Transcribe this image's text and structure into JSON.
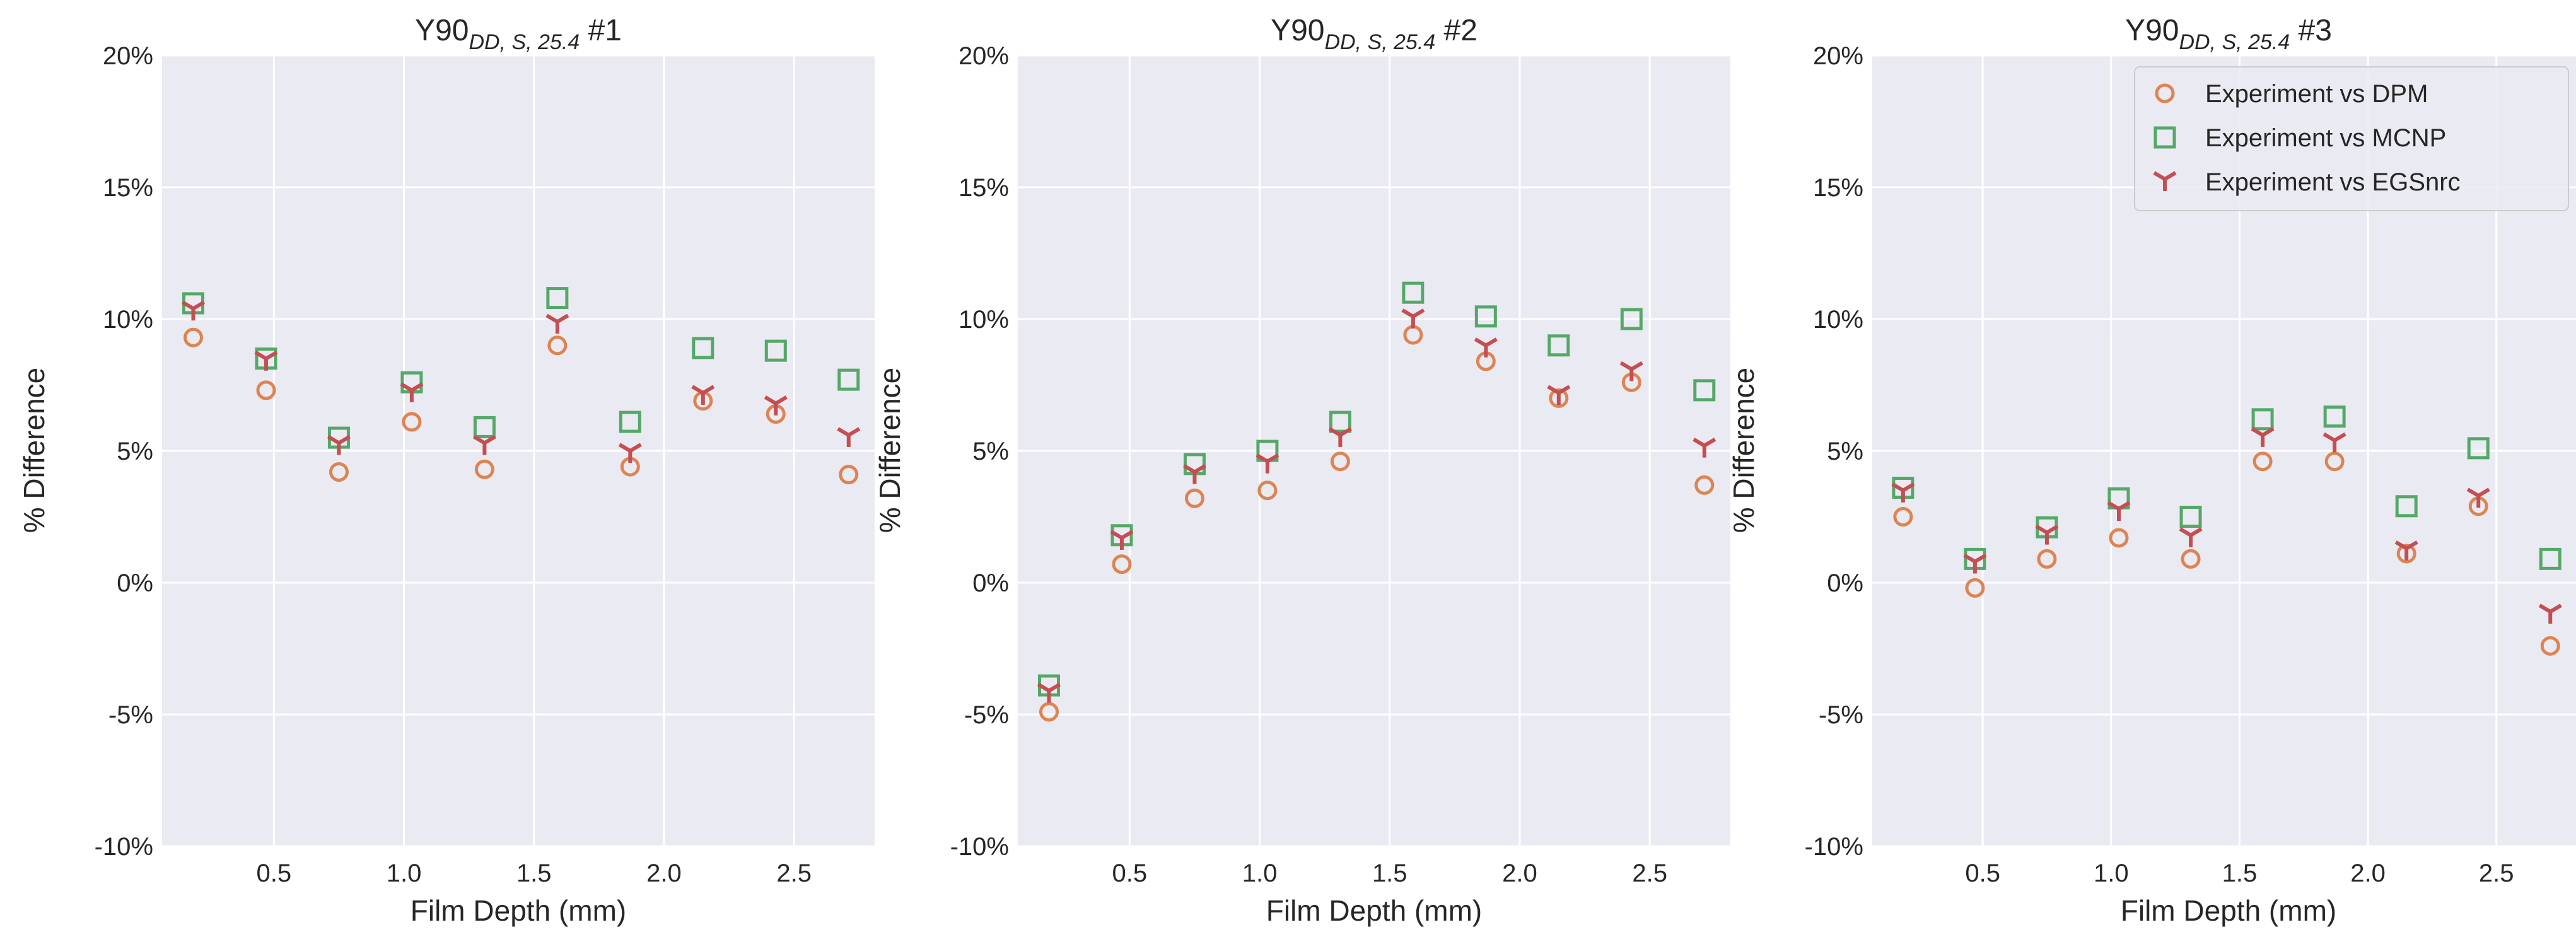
{
  "colors": {
    "background": "#EAEAF2",
    "grid": "#FFFFFF",
    "dpm": "#DD8452",
    "mcnp": "#55A868",
    "egsnrc": "#C44E52"
  },
  "chart_data": [
    {
      "type": "scatter",
      "title": {
        "main": "Y90",
        "subscript": "DD, S, 25.4",
        "suffix": " #1"
      },
      "xlabel": "Film Depth (mm)",
      "ylabel": "% Difference",
      "xlim": [
        0.07,
        2.81
      ],
      "ylim": [
        -10,
        20
      ],
      "xticks": [
        0.5,
        1.0,
        1.5,
        2.0,
        2.5
      ],
      "xtick_labels": [
        "0.5",
        "1.0",
        "1.5",
        "2.0",
        "2.5"
      ],
      "yticks": [
        -10,
        -5,
        0,
        5,
        10,
        15,
        20
      ],
      "ytick_labels": [
        "-10%",
        "-5%",
        "0%",
        "5%",
        "10%",
        "15%",
        "20%"
      ],
      "grid": true,
      "show_legend": false,
      "x": [
        0.19,
        0.47,
        0.75,
        1.03,
        1.31,
        1.59,
        1.87,
        2.15,
        2.43,
        2.71
      ],
      "series": [
        {
          "name": "Experiment vs DPM",
          "marker": "circle",
          "values": [
            9.3,
            7.3,
            4.2,
            6.1,
            4.3,
            9.0,
            4.4,
            6.9,
            6.4,
            4.1
          ]
        },
        {
          "name": "Experiment vs MCNP",
          "marker": "square",
          "values": [
            10.6,
            8.5,
            5.5,
            7.6,
            5.9,
            10.8,
            6.1,
            8.9,
            8.8,
            7.7
          ]
        },
        {
          "name": "Experiment vs EGSnrc",
          "marker": "tri_down",
          "values": [
            10.4,
            8.5,
            5.3,
            7.3,
            5.3,
            9.9,
            5.0,
            7.2,
            6.8,
            5.6
          ]
        }
      ]
    },
    {
      "type": "scatter",
      "title": {
        "main": "Y90",
        "subscript": "DD, S, 25.4",
        "suffix": " #2"
      },
      "xlabel": "Film Depth (mm)",
      "ylabel": "% Difference",
      "xlim": [
        0.07,
        2.81
      ],
      "ylim": [
        -10,
        20
      ],
      "xticks": [
        0.5,
        1.0,
        1.5,
        2.0,
        2.5
      ],
      "xtick_labels": [
        "0.5",
        "1.0",
        "1.5",
        "2.0",
        "2.5"
      ],
      "yticks": [
        -10,
        -5,
        0,
        5,
        10,
        15,
        20
      ],
      "ytick_labels": [
        "-10%",
        "-5%",
        "0%",
        "5%",
        "10%",
        "15%",
        "20%"
      ],
      "grid": true,
      "show_legend": false,
      "x": [
        0.19,
        0.47,
        0.75,
        1.03,
        1.31,
        1.59,
        1.87,
        2.15,
        2.43,
        2.71
      ],
      "series": [
        {
          "name": "Experiment vs DPM",
          "marker": "circle",
          "values": [
            -4.9,
            0.7,
            3.2,
            3.5,
            4.6,
            9.4,
            8.4,
            7.0,
            7.6,
            3.7
          ]
        },
        {
          "name": "Experiment vs MCNP",
          "marker": "square",
          "values": [
            -3.9,
            1.8,
            4.5,
            5.0,
            6.1,
            11.0,
            10.1,
            9.0,
            10.0,
            7.3
          ]
        },
        {
          "name": "Experiment vs EGSnrc",
          "marker": "tri_down",
          "values": [
            -4.1,
            1.7,
            4.2,
            4.6,
            5.6,
            10.1,
            9.0,
            7.2,
            8.1,
            5.2
          ]
        }
      ]
    },
    {
      "type": "scatter",
      "title": {
        "main": "Y90",
        "subscript": "DD, S, 25.4",
        "suffix": " #3"
      },
      "xlabel": "Film Depth (mm)",
      "ylabel": "% Difference",
      "xlim": [
        0.07,
        2.81
      ],
      "ylim": [
        -10,
        20
      ],
      "xticks": [
        0.5,
        1.0,
        1.5,
        2.0,
        2.5
      ],
      "xtick_labels": [
        "0.5",
        "1.0",
        "1.5",
        "2.0",
        "2.5"
      ],
      "yticks": [
        -10,
        -5,
        0,
        5,
        10,
        15,
        20
      ],
      "ytick_labels": [
        "-10%",
        "-5%",
        "0%",
        "5%",
        "10%",
        "15%",
        "20%"
      ],
      "grid": true,
      "show_legend": true,
      "legend_position": "top-right",
      "x": [
        0.19,
        0.47,
        0.75,
        1.03,
        1.31,
        1.59,
        1.87,
        2.15,
        2.43,
        2.71
      ],
      "series": [
        {
          "name": "Experiment vs DPM",
          "marker": "circle",
          "values": [
            2.5,
            -0.2,
            0.9,
            1.7,
            0.9,
            4.6,
            4.6,
            1.1,
            2.9,
            -2.4
          ]
        },
        {
          "name": "Experiment vs MCNP",
          "marker": "square",
          "values": [
            3.6,
            0.9,
            2.1,
            3.2,
            2.5,
            6.2,
            6.3,
            2.9,
            5.1,
            0.9
          ]
        },
        {
          "name": "Experiment vs EGSnrc",
          "marker": "tri_down",
          "values": [
            3.5,
            0.8,
            1.9,
            2.8,
            1.8,
            5.6,
            5.4,
            1.3,
            3.3,
            -1.1
          ]
        }
      ]
    }
  ]
}
